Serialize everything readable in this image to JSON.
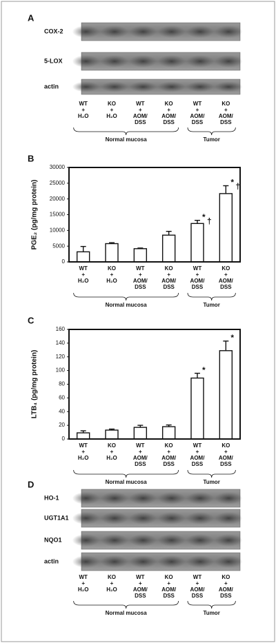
{
  "lanes": [
    [
      "WT",
      "+",
      "H₂O"
    ],
    [
      "KO",
      "+",
      "H₂O"
    ],
    [
      "WT",
      "+",
      "AOM/",
      "DSS"
    ],
    [
      "KO",
      "+",
      "AOM/",
      "DSS"
    ],
    [
      "WT",
      "+",
      "AOM/",
      "DSS"
    ],
    [
      "KO",
      "+",
      "AOM/",
      "DSS"
    ]
  ],
  "groups": [
    "Normal mucosa",
    "Tumor"
  ],
  "blots": [
    {
      "panel": "A",
      "rows": [
        "COX-2",
        "5-LOX",
        "actin"
      ]
    },
    {
      "panel": "D",
      "rows": [
        "HO-1",
        "UGT1A1",
        "NQO1",
        "actin"
      ]
    }
  ],
  "chart_data": [
    {
      "type": "bar",
      "panel": "B",
      "ylabel": "PGE₂ (pg/mg protein)",
      "categories": [
        [
          "WT",
          "+",
          "H₂O"
        ],
        [
          "KO",
          "+",
          "H₂O"
        ],
        [
          "WT",
          "+",
          "AOM/",
          "DSS"
        ],
        [
          "KO",
          "+",
          "AOM/",
          "DSS"
        ],
        [
          "WT",
          "+",
          "AOM/",
          "DSS"
        ],
        [
          "KO",
          "+",
          "AOM/",
          "DSS"
        ]
      ],
      "values": [
        3200,
        5800,
        4200,
        8500,
        12200,
        21700
      ],
      "errors": [
        1700,
        300,
        200,
        1200,
        1000,
        2500
      ],
      "markers": [
        null,
        null,
        null,
        null,
        [
          "*",
          "†"
        ],
        [
          "*",
          "†"
        ]
      ],
      "ylim": [
        0,
        30000
      ],
      "yticks": [
        0,
        5000,
        10000,
        15000,
        20000,
        25000,
        30000
      ],
      "color": "#ffffff"
    },
    {
      "type": "bar",
      "panel": "C",
      "ylabel": "LTB₄ (pg/mg protein)",
      "categories": [
        [
          "WT",
          "+",
          "H₂O"
        ],
        [
          "KO",
          "+",
          "H₂O"
        ],
        [
          "WT",
          "+",
          "AOM/",
          "DSS"
        ],
        [
          "KO",
          "+",
          "AOM/",
          "DSS"
        ],
        [
          "WT",
          "+",
          "AOM/",
          "DSS"
        ],
        [
          "KO",
          "+",
          "AOM/",
          "DSS"
        ]
      ],
      "values": [
        9,
        13,
        17,
        18,
        89,
        129
      ],
      "errors": [
        3,
        1.5,
        3,
        2.5,
        7,
        14
      ],
      "markers": [
        null,
        null,
        null,
        null,
        [
          "*"
        ],
        [
          "*"
        ]
      ],
      "ylim": [
        0,
        160
      ],
      "yticks": [
        0,
        20,
        40,
        60,
        80,
        100,
        120,
        140,
        160
      ],
      "color": "#ffffff"
    }
  ]
}
